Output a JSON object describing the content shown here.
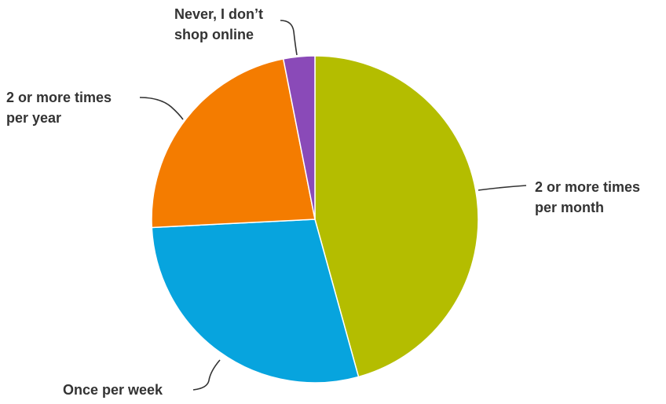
{
  "chart_data": {
    "type": "pie",
    "title": "",
    "legend": "none",
    "start": "top (12 o'clock), clockwise",
    "slices": [
      {
        "label": "2 or more times per month",
        "label_lines": [
          "2 or more times",
          "per month"
        ],
        "value": 45.7,
        "color": "#b4bd00"
      },
      {
        "label": "Once per week",
        "label_lines": [
          "Once per week"
        ],
        "value": 28.5,
        "color": "#07a4de"
      },
      {
        "label": "2 or more times per year",
        "label_lines": [
          "2 or more times",
          "per year"
        ],
        "value": 22.7,
        "color": "#f47c00"
      },
      {
        "label": "Never, I don’t shop online",
        "label_lines": [
          "Never, I don’t",
          "shop online"
        ],
        "value": 3.1,
        "color": "#8a4ab8"
      }
    ]
  }
}
